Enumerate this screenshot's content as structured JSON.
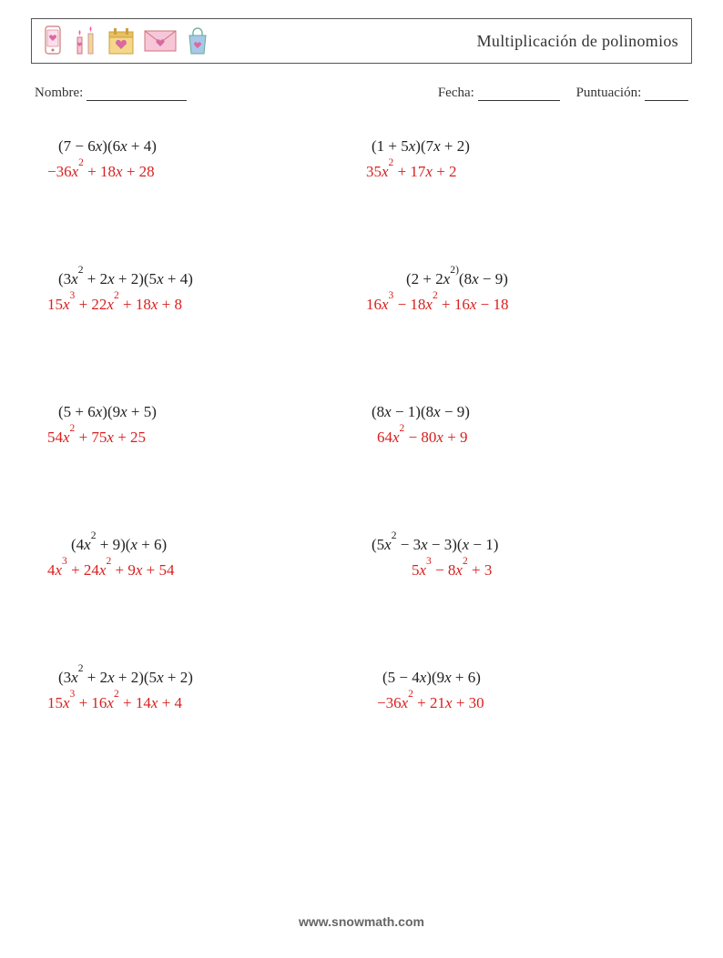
{
  "colors": {
    "question": "#222222",
    "answer": "#d8201f",
    "border": "#555555",
    "text": "#333333",
    "footer": "#666666",
    "icon_pink": "#f7c6d9",
    "icon_pink_dark": "#d86aa0",
    "icon_yellow": "#f5d78a",
    "icon_blue": "#a8c8e8"
  },
  "header": {
    "title": "Multiplicación de polinomios"
  },
  "meta": {
    "name_label": "Nombre:",
    "date_label": "Fecha:",
    "score_label": "Puntuación:",
    "name_blank_width": 110,
    "date_blank_width": 90,
    "score_blank_width": 48
  },
  "problems": [
    {
      "q_pre": "(7 − 6",
      "q_mid1": ")(6",
      "q_post": " + 4)",
      "a_tokens": [
        {
          "t": "−36"
        },
        {
          "t": "x",
          "x": 1,
          "sup": "2"
        },
        {
          "t": " + 18"
        },
        {
          "t": "x",
          "x": 1
        },
        {
          "t": " + 28"
        }
      ]
    },
    {
      "q_pre": "(1 + 5",
      "q_mid1": ")(7",
      "q_post": " + 2)",
      "a_tokens": [
        {
          "t": "35"
        },
        {
          "t": "x",
          "x": 1,
          "sup": "2"
        },
        {
          "t": " + 17"
        },
        {
          "t": "x",
          "x": 1
        },
        {
          "t": " + 2"
        }
      ]
    },
    {
      "q_pre": "(3",
      "q_sup1": "2",
      "q_mid0": " + 2",
      "q_mid1": " + 2)(5",
      "q_post": " + 4)",
      "a_tokens": [
        {
          "t": "15"
        },
        {
          "t": "x",
          "x": 1,
          "sup": "3"
        },
        {
          "t": " + 22"
        },
        {
          "t": "x",
          "x": 1,
          "sup": "2"
        },
        {
          "t": " + 18"
        },
        {
          "t": "x",
          "x": 1
        },
        {
          "t": " + 8"
        }
      ]
    },
    {
      "q_pre": "(2 + 2",
      "q_sup1": "2)",
      "q_mid1b": "(8",
      "q_post": " − 9)",
      "a_tokens": [
        {
          "t": "16"
        },
        {
          "t": "x",
          "x": 1,
          "sup": "3"
        },
        {
          "t": " − 18"
        },
        {
          "t": "x",
          "x": 1,
          "sup": "2"
        },
        {
          "t": " + 16"
        },
        {
          "t": "x",
          "x": 1
        },
        {
          "t": " − 18"
        }
      ],
      "q_indent": 44,
      "a_indent": 0
    },
    {
      "q_pre": "(5 + 6",
      "q_mid1": ")(9",
      "q_post": " + 5)",
      "a_tokens": [
        {
          "t": "54"
        },
        {
          "t": "x",
          "x": 1,
          "sup": "2"
        },
        {
          "t": " + 75"
        },
        {
          "t": "x",
          "x": 1
        },
        {
          "t": " + 25"
        }
      ]
    },
    {
      "q_pre": "(8",
      "q_mid1": " − 1)(8",
      "q_post": " − 9)",
      "a_tokens": [
        {
          "t": "64"
        },
        {
          "t": "x",
          "x": 1,
          "sup": "2"
        },
        {
          "t": " − 80"
        },
        {
          "t": "x",
          "x": 1
        },
        {
          "t": " + 9"
        }
      ],
      "a_indent": 12
    },
    {
      "q_pre": "(4",
      "q_sup1": "2",
      "q_mid1": " + 9)(",
      "q_post": " + 6)",
      "a_tokens": [
        {
          "t": "4"
        },
        {
          "t": "x",
          "x": 1,
          "sup": "3"
        },
        {
          "t": " + 24"
        },
        {
          "t": "x",
          "x": 1,
          "sup": "2"
        },
        {
          "t": " + 9"
        },
        {
          "t": "x",
          "x": 1
        },
        {
          "t": " + 54"
        }
      ],
      "q_indent": 28
    },
    {
      "q_pre": "(5",
      "q_sup1": "2",
      "q_mid0": " − 3",
      "q_mid1": " − 3)(",
      "q_post": " − 1)",
      "a_tokens": [
        {
          "t": "5"
        },
        {
          "t": "x",
          "x": 1,
          "sup": "3"
        },
        {
          "t": " − 8"
        },
        {
          "t": "x",
          "x": 1,
          "sup": "2"
        },
        {
          "t": " + 3"
        }
      ],
      "a_indent": 50
    },
    {
      "q_pre": "(3",
      "q_sup1": "2",
      "q_mid0": " + 2",
      "q_mid1": " + 2)(5",
      "q_post": " + 2)",
      "a_tokens": [
        {
          "t": "15"
        },
        {
          "t": "x",
          "x": 1,
          "sup": "3"
        },
        {
          "t": " + 16"
        },
        {
          "t": "x",
          "x": 1,
          "sup": "2"
        },
        {
          "t": " + 14"
        },
        {
          "t": "x",
          "x": 1
        },
        {
          "t": " + 4"
        }
      ]
    },
    {
      "q_pre": "(5 − 4",
      "q_mid1": ")(9",
      "q_post": " + 6)",
      "a_tokens": [
        {
          "t": "−36"
        },
        {
          "t": "x",
          "x": 1,
          "sup": "2"
        },
        {
          "t": " + 21"
        },
        {
          "t": "x",
          "x": 1
        },
        {
          "t": " + 30"
        }
      ],
      "q_indent": 18,
      "a_indent": 12
    }
  ],
  "footer": "www.snowmath.com"
}
